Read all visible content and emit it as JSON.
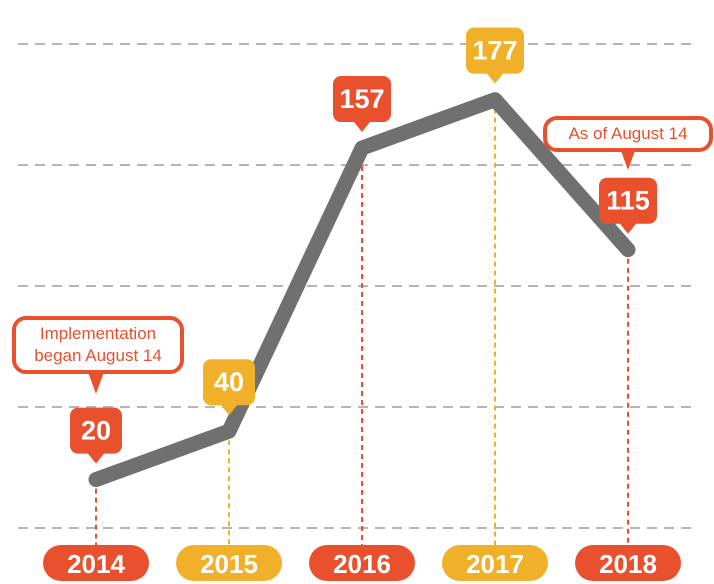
{
  "chart_data": {
    "type": "line",
    "categories": [
      "2014",
      "2015",
      "2016",
      "2017",
      "2018"
    ],
    "series": [
      {
        "color": "#707070",
        "values": [
          20,
          40,
          157,
          177,
          115
        ]
      }
    ],
    "point_colors": [
      "#e8502e",
      "#f0b02a",
      "#e8502e",
      "#f0b02a",
      "#e8502e"
    ],
    "ylim": [
      0,
      200
    ],
    "yticks": [
      0,
      50,
      100,
      150,
      200
    ],
    "grid": true,
    "annotations": [
      {
        "text": "Implementation began August 14",
        "x": "2014"
      },
      {
        "text": "As of August 14",
        "x": "2018"
      }
    ]
  }
}
